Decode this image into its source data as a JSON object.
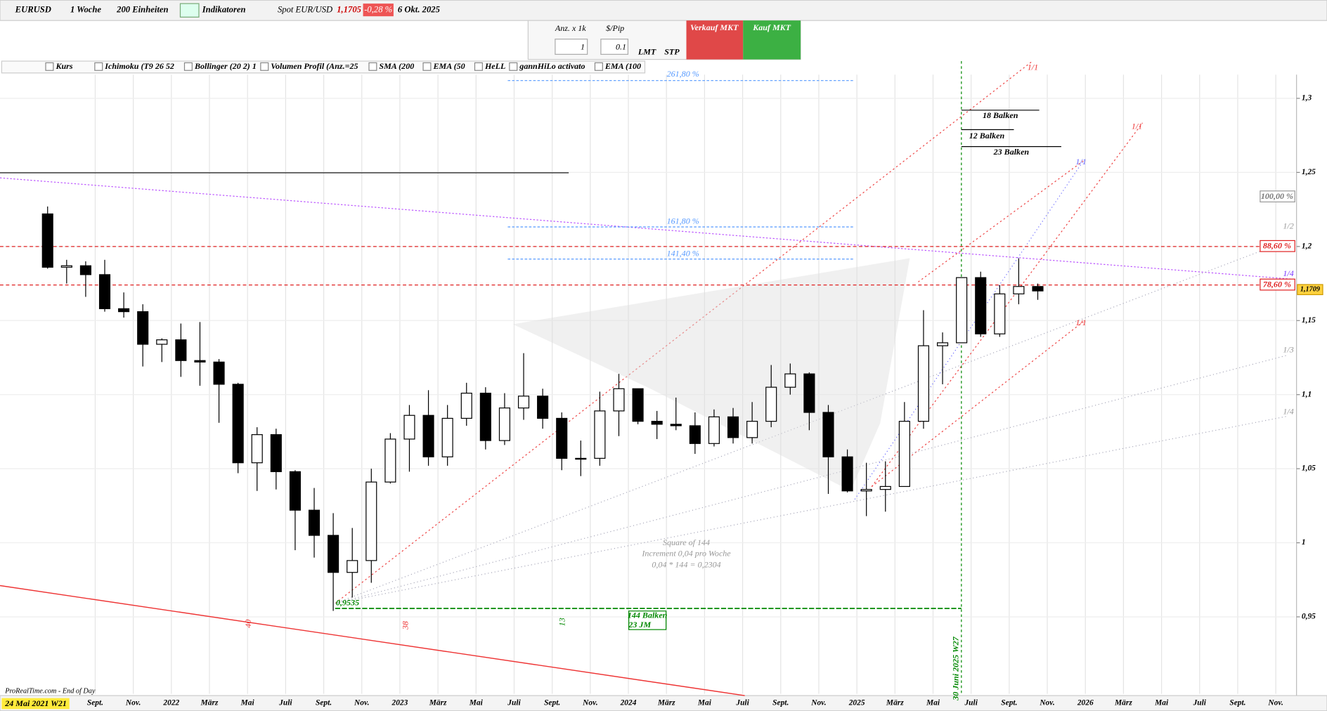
{
  "toolbar": {
    "symbol": "EURUSD",
    "period": "1 Woche",
    "units": "200 Einheiten",
    "indicators": "Indikatoren",
    "spot_label": "Spot EUR/USD",
    "spot_price": "1,1705",
    "spot_change": "-0,28 %",
    "date": "6 Okt. 2025"
  },
  "order_panel": {
    "qty_label": "Anz. x 1k",
    "qty": "1",
    "pip_label": "$/Pip",
    "pip": "0.1",
    "lmt": "LMT",
    "stp": "STP",
    "sell": "Verkauf MKT",
    "buy": "Kauf MKT"
  },
  "indicator_bar": [
    "Kurs",
    "Ichimoku (T9 26 52",
    "Bollinger (20 2) 1",
    "Volumen Profil (Anz.=25",
    "SMA (200",
    "EMA (50",
    "HeLL",
    "gannHiLo activato",
    "EMA (100"
  ],
  "annotations": {
    "fib": [
      "261,80 %",
      "161,80 %",
      "141,40 %"
    ],
    "square": [
      "Square of 144",
      "Increment 0,04 pro Woche",
      "0,04 * 144 = 0,2304"
    ],
    "low": "0,9535",
    "bars_144": "144 Balken",
    "bars_sub": "23 JM",
    "bars": [
      "18 Balken",
      "12 Balken",
      "23 Balken"
    ],
    "date_line": "30 Juni 2025 W27",
    "gann": [
      "1/1",
      "1/2",
      "1/3",
      "1/4"
    ],
    "arrows": [
      "40",
      "38",
      "13"
    ],
    "footer": "ProRealTime.com - End of Day"
  },
  "chart_data": {
    "type": "candlestick",
    "cursor_label": "24 Mai 2021 W21",
    "x": [
      "2021-06",
      "2021-07",
      "2021-08",
      "2021-09",
      "2021-10",
      "2021-11",
      "2021-12",
      "2022-01",
      "2022-02",
      "2022-03",
      "2022-04",
      "2022-05",
      "2022-06",
      "2022-07",
      "2022-08",
      "2022-09",
      "2022-10",
      "2022-11",
      "2022-12",
      "2023-01",
      "2023-02",
      "2023-03",
      "2023-04",
      "2023-05",
      "2023-06",
      "2023-07",
      "2023-08",
      "2023-09",
      "2023-10",
      "2023-11",
      "2023-12",
      "2024-01",
      "2024-02",
      "2024-03",
      "2024-04",
      "2024-05",
      "2024-06",
      "2024-07",
      "2024-08",
      "2024-09",
      "2024-10",
      "2024-11",
      "2024-12",
      "2025-01",
      "2025-02",
      "2025-03",
      "2025-04",
      "2025-05",
      "2025-06",
      "2025-07",
      "2025-08",
      "2025-09",
      "2025-10"
    ],
    "open": [
      1.222,
      1.186,
      1.187,
      1.181,
      1.158,
      1.156,
      1.134,
      1.137,
      1.123,
      1.122,
      1.107,
      1.054,
      1.073,
      1.048,
      1.022,
      1.005,
      0.98,
      0.988,
      1.041,
      1.07,
      1.086,
      1.058,
      1.084,
      1.101,
      1.069,
      1.091,
      1.099,
      1.084,
      1.057,
      1.057,
      1.089,
      1.104,
      1.082,
      1.08,
      1.079,
      1.067,
      1.085,
      1.071,
      1.082,
      1.105,
      1.114,
      1.088,
      1.058,
      1.035,
      1.036,
      1.038,
      1.082,
      1.133,
      1.135,
      1.179,
      1.141,
      1.168,
      1.173
    ],
    "high": [
      1.227,
      1.191,
      1.19,
      1.191,
      1.169,
      1.161,
      1.138,
      1.148,
      1.149,
      1.124,
      1.108,
      1.078,
      1.077,
      1.049,
      1.037,
      1.02,
      1.01,
      1.05,
      1.074,
      1.093,
      1.103,
      1.093,
      1.108,
      1.105,
      1.101,
      1.128,
      1.104,
      1.088,
      1.069,
      1.102,
      1.114,
      1.104,
      1.089,
      1.098,
      1.088,
      1.09,
      1.091,
      1.095,
      1.12,
      1.121,
      1.115,
      1.093,
      1.063,
      1.054,
      1.055,
      1.095,
      1.157,
      1.142,
      1.179,
      1.183,
      1.174,
      1.192,
      1.175
    ],
    "low": [
      1.185,
      1.175,
      1.166,
      1.156,
      1.152,
      1.119,
      1.122,
      1.112,
      1.106,
      1.081,
      1.047,
      1.035,
      1.036,
      0.995,
      0.99,
      0.954,
      0.963,
      0.973,
      1.04,
      1.048,
      1.052,
      1.052,
      1.079,
      1.063,
      1.066,
      1.083,
      1.077,
      1.049,
      1.045,
      1.052,
      1.072,
      1.08,
      1.07,
      1.076,
      1.06,
      1.065,
      1.067,
      1.067,
      1.078,
      1.1,
      1.076,
      1.033,
      1.034,
      1.018,
      1.021,
      1.038,
      1.077,
      1.107,
      1.135,
      1.139,
      1.139,
      1.161,
      1.164
    ],
    "close": [
      1.186,
      1.187,
      1.181,
      1.158,
      1.156,
      1.134,
      1.137,
      1.123,
      1.122,
      1.107,
      1.054,
      1.073,
      1.048,
      1.022,
      1.005,
      0.98,
      0.988,
      1.041,
      1.07,
      1.086,
      1.058,
      1.084,
      1.101,
      1.069,
      1.091,
      1.099,
      1.084,
      1.057,
      1.057,
      1.089,
      1.104,
      1.082,
      1.08,
      1.079,
      1.067,
      1.085,
      1.071,
      1.082,
      1.105,
      1.114,
      1.088,
      1.058,
      1.035,
      1.036,
      1.038,
      1.082,
      1.133,
      1.135,
      1.179,
      1.141,
      1.168,
      1.173,
      1.17
    ],
    "xlim": [
      "2021-04",
      "2026-12"
    ],
    "xticks": [
      {
        "value": "2021-09",
        "label": "Sept."
      },
      {
        "value": "2021-11",
        "label": "Nov."
      },
      {
        "value": "2022-01",
        "label": "2022"
      },
      {
        "value": "2022-03",
        "label": "März"
      },
      {
        "value": "2022-05",
        "label": "Mai"
      },
      {
        "value": "2022-07",
        "label": "Juli"
      },
      {
        "value": "2022-09",
        "label": "Sept."
      },
      {
        "value": "2022-11",
        "label": "Nov."
      },
      {
        "value": "2023-01",
        "label": "2023"
      },
      {
        "value": "2023-03",
        "label": "März"
      },
      {
        "value": "2023-05",
        "label": "Mai"
      },
      {
        "value": "2023-07",
        "label": "Juli"
      },
      {
        "value": "2023-09",
        "label": "Sept."
      },
      {
        "value": "2023-11",
        "label": "Nov."
      },
      {
        "value": "2024-01",
        "label": "2024"
      },
      {
        "value": "2024-03",
        "label": "März"
      },
      {
        "value": "2024-05",
        "label": "Mai"
      },
      {
        "value": "2024-07",
        "label": "Juli"
      },
      {
        "value": "2024-09",
        "label": "Sept."
      },
      {
        "value": "2024-11",
        "label": "Nov."
      },
      {
        "value": "2025-01",
        "label": "2025"
      },
      {
        "value": "2025-03",
        "label": "März"
      },
      {
        "value": "2025-05",
        "label": "Mai"
      },
      {
        "value": "2025-07",
        "label": "Juli"
      },
      {
        "value": "2025-09",
        "label": "Sept."
      },
      {
        "value": "2025-11",
        "label": "Nov."
      },
      {
        "value": "2026-01",
        "label": "2026"
      },
      {
        "value": "2026-03",
        "label": "März"
      },
      {
        "value": "2026-05",
        "label": "Mai"
      },
      {
        "value": "2026-07",
        "label": "Juli"
      },
      {
        "value": "2026-09",
        "label": "Sept."
      },
      {
        "value": "2026-11",
        "label": "Nov."
      }
    ],
    "ylim": [
      0.898,
      1.316
    ],
    "yticks": [
      {
        "value": 0.95,
        "label": "0,95"
      },
      {
        "value": 1,
        "label": "1"
      },
      {
        "value": 1.05,
        "label": "1,05"
      },
      {
        "value": 1.1,
        "label": "1,1"
      },
      {
        "value": 1.15,
        "label": "1,15"
      },
      {
        "value": 1.2,
        "label": "1,2"
      },
      {
        "value": 1.25,
        "label": "1,25"
      },
      {
        "value": 1.3,
        "label": "1,3"
      }
    ],
    "grid": true,
    "levels": [
      {
        "price": 1.2335,
        "label": "100,00 %",
        "color": "#000000"
      },
      {
        "price": 1.2,
        "label": "88,60 %",
        "color": "#e02020"
      },
      {
        "price": 1.174,
        "label": "78,60 %",
        "color": "#e02020"
      }
    ],
    "current_price": {
      "value": 1.1709,
      "label": "1,1709"
    }
  }
}
